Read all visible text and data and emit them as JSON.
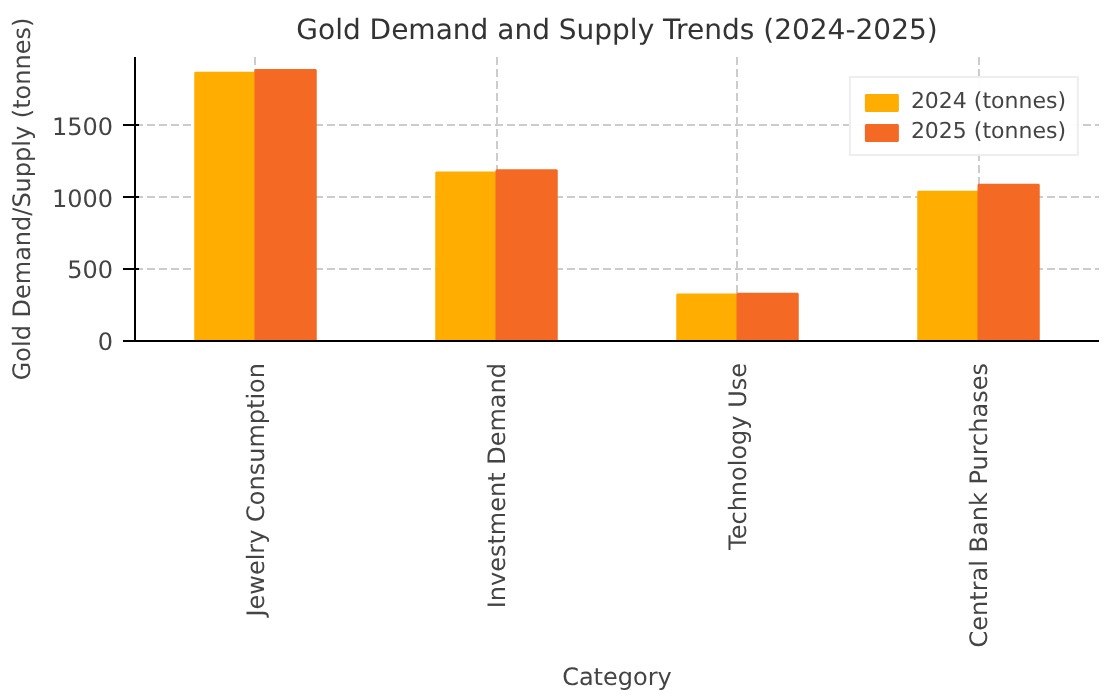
{
  "chart_data": {
    "type": "bar",
    "title": "Gold Demand and Supply Trends (2024-2025)",
    "xlabel": "Category",
    "ylabel": "Gold Demand/Supply (tonnes)",
    "categories": [
      "Jewelry Consumption",
      "Investment Demand",
      "Technology Use",
      "Central Bank Purchases"
    ],
    "series": [
      {
        "name": "2024 (tonnes)",
        "color": "#ffad00",
        "values": [
          1870,
          1175,
          325,
          1040
        ]
      },
      {
        "name": "2025 (tonnes)",
        "color": "#f46a25",
        "values": [
          1890,
          1190,
          330,
          1090
        ]
      }
    ],
    "ylim": [
      0,
      1980
    ],
    "yticks": [
      0,
      500,
      1000,
      1500
    ],
    "grid": true,
    "legend": "top right"
  }
}
